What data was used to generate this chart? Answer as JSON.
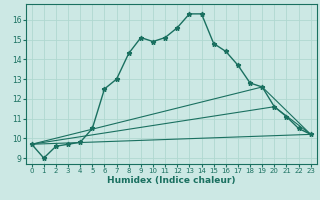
{
  "xlabel": "Humidex (Indice chaleur)",
  "bg_color": "#cce8e4",
  "grid_color": "#b0d8d0",
  "line_color": "#1a7060",
  "xlim": [
    -0.5,
    23.5
  ],
  "ylim": [
    8.7,
    16.8
  ],
  "yticks": [
    9,
    10,
    11,
    12,
    13,
    14,
    15,
    16
  ],
  "xticks": [
    0,
    1,
    2,
    3,
    4,
    5,
    6,
    7,
    8,
    9,
    10,
    11,
    12,
    13,
    14,
    15,
    16,
    17,
    18,
    19,
    20,
    21,
    22,
    23
  ],
  "main_x": [
    0,
    1,
    2,
    3,
    4,
    5,
    6,
    7,
    8,
    9,
    10,
    11,
    12,
    13,
    14,
    15,
    16,
    17,
    18,
    19,
    20,
    21,
    22,
    23
  ],
  "main_y": [
    9.7,
    9.0,
    9.6,
    9.7,
    9.8,
    10.5,
    12.5,
    13.0,
    14.3,
    15.1,
    14.9,
    15.1,
    15.6,
    16.3,
    16.3,
    14.8,
    14.4,
    13.7,
    12.8,
    12.6,
    11.6,
    11.1,
    10.5,
    10.2
  ],
  "fan_lines": [
    {
      "x": [
        0,
        23
      ],
      "y": [
        9.7,
        10.2
      ]
    },
    {
      "x": [
        0,
        20,
        23
      ],
      "y": [
        9.7,
        11.6,
        10.2
      ]
    },
    {
      "x": [
        0,
        19,
        23
      ],
      "y": [
        9.7,
        12.6,
        10.2
      ]
    }
  ]
}
